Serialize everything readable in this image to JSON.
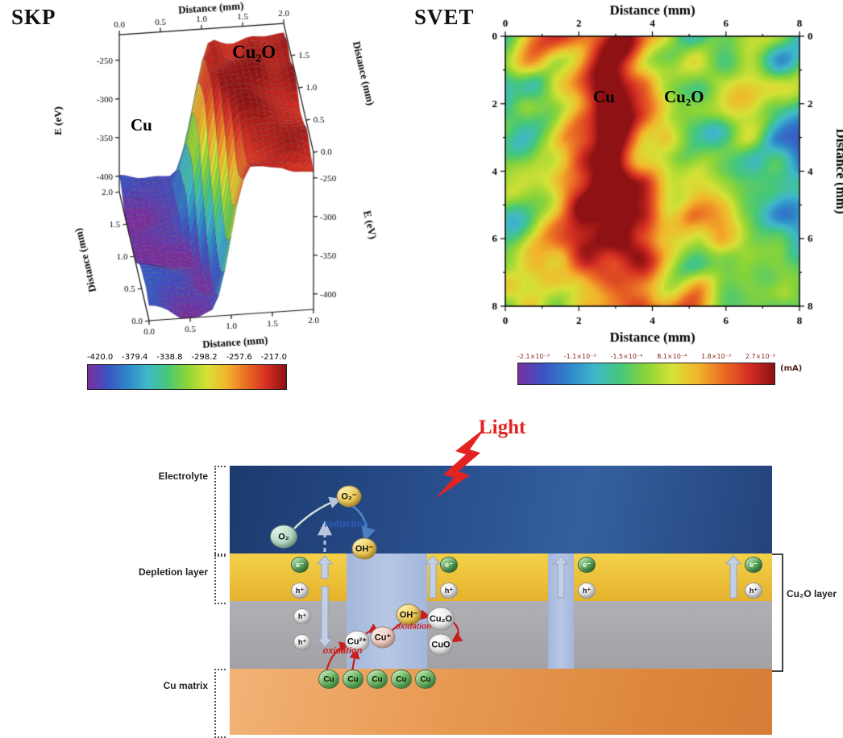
{
  "figure": {
    "skp_title": "SKP",
    "svet_title": "SVET"
  },
  "chart_data": [
    {
      "type": "surface3d",
      "panel": "SKP",
      "x_label": "Distance (mm)",
      "x_ticks": [
        "0.0",
        "0.5",
        "1.0",
        "1.5",
        "2.0"
      ],
      "x_range_mm": [
        0,
        2
      ],
      "y_label": "Distance (mm)",
      "y_ticks": [
        "0.0",
        "0.5",
        "1.0",
        "1.5",
        "2.0"
      ],
      "y_range_mm": [
        0,
        2
      ],
      "z_label": "E (eV)",
      "z_ticks": [
        "-250",
        "-300",
        "-350",
        "-400"
      ],
      "z_range_eV": [
        -420,
        -217
      ],
      "regions": [
        {
          "label": "Cu",
          "description": "low-potential plateau, about -420 to -380 eV, x < 1 mm, purple-blue"
        },
        {
          "label": "Cu₂O",
          "description": "high-potential plateau, about -260 to -217 eV, x > 1.2 mm, red"
        }
      ],
      "colorbar": {
        "ticks": [
          "-420.0",
          "-379.4",
          "-338.8",
          "-298.2",
          "-257.6",
          "-217.0"
        ]
      },
      "colormap": [
        "#7a2f9e",
        "#3b53c4",
        "#2f86c9",
        "#3fb8c9",
        "#46c77a",
        "#8bd437",
        "#d6e136",
        "#f2b52c",
        "#ea6d24",
        "#d52f23",
        "#8e1113"
      ]
    },
    {
      "type": "heatmap",
      "panel": "SVET",
      "x_label": "Distance (mm)",
      "x_ticks": [
        "0",
        "2",
        "4",
        "6",
        "8"
      ],
      "x_range_mm": [
        0,
        8
      ],
      "y_label": "Distance (mm)",
      "y_ticks": [
        "0",
        "2",
        "4",
        "6",
        "8"
      ],
      "y_range_mm": [
        0,
        8
      ],
      "regions": [
        {
          "label": "Cu",
          "description": "anodic red band, x ≈ 1.5–4.5 mm"
        },
        {
          "label": "Cu₂O",
          "description": "mixed cathodic green/blue mottled region, x ≈ 4.5–8 mm"
        }
      ],
      "colorbar": {
        "ticks": [
          "-2.1×10⁻³",
          "-1.1×10⁻³",
          "-1.5×10⁻⁴",
          "8.1×10⁻⁴",
          "1.8×10⁻³",
          "2.7×10⁻³"
        ],
        "unit": "(mA)"
      },
      "colormap": [
        "#7a2f9e",
        "#3b53c4",
        "#2f86c9",
        "#3fb8c9",
        "#46c77a",
        "#8bd437",
        "#d6e136",
        "#f2b52c",
        "#ea6d24",
        "#d52f23",
        "#8e1113"
      ]
    }
  ],
  "diagram": {
    "light": "Light",
    "labels": {
      "electrolyte": "Electrolyte",
      "depletion": "Depletion layer",
      "cu_matrix": "Cu matrix",
      "cu2o_layer": "Cu₂O layer"
    },
    "species": {
      "o2": "O₂",
      "superoxide": "O₂⁻",
      "hydroxide": "OH⁻",
      "electron": "e⁻",
      "hole": "h⁺",
      "cu2plus": "Cu²⁺",
      "cuplus": "Cu⁺",
      "cu2o": "Cu₂O",
      "cuo": "CuO",
      "cu": "Cu"
    },
    "processes": {
      "reduction": "reduction",
      "oxidation": "oxidation"
    }
  }
}
